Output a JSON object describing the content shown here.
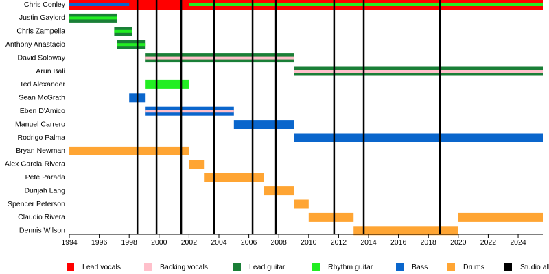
{
  "chart_data": {
    "type": "timeline",
    "categories": [
      "Chris Conley",
      "Justin Gaylord",
      "Chris Zampella",
      "Anthony Anastacio",
      "David Soloway",
      "Arun Bali",
      "Ted Alexander",
      "Sean McGrath",
      "Eben D'Amico",
      "Manuel Carrero",
      "Rodrigo Palma",
      "Bryan Newman",
      "Alex Garcia-Rivera",
      "Pete Parada",
      "Durijah Lang",
      "Spencer Peterson",
      "Claudio Rivera",
      "Dennis Wilson"
    ],
    "xlim": [
      1994,
      2025.65
    ],
    "xticks": [
      1994,
      1996,
      1998,
      2000,
      2002,
      2004,
      2006,
      2008,
      2010,
      2012,
      2014,
      2016,
      2018,
      2020,
      2022,
      2024
    ],
    "series": [
      {
        "name": "Lead vocals",
        "color": "#ff0000",
        "values": [
          [
            [
              1994,
              2025.65
            ]
          ],
          [],
          [],
          [],
          [],
          [],
          [],
          [],
          [],
          [],
          [],
          [],
          [],
          [],
          [],
          [],
          [],
          []
        ],
        "overlay": [
          [],
          [],
          [],
          [],
          [],
          [],
          [],
          [],
          [],
          [],
          [],
          [],
          [],
          [],
          [],
          [],
          [],
          []
        ]
      },
      {
        "name": "Backing vocals",
        "color": "#ffc0cb",
        "values": [
          [],
          [],
          [],
          [],
          [],
          [],
          [],
          [],
          [],
          [],
          [],
          [],
          [],
          [],
          [],
          [],
          [],
          []
        ],
        "overlay": [
          [],
          [],
          [],
          [],
          [
            [
              1999.1,
              2009
            ]
          ],
          [
            [
              2009,
              2025.65
            ]
          ],
          [],
          [],
          [
            [
              1999.1,
              2005
            ]
          ],
          [],
          [],
          [],
          [],
          [],
          [],
          [],
          [],
          []
        ]
      },
      {
        "name": "Lead guitar",
        "color": "#1a7f37",
        "values": [
          [],
          [
            [
              1994,
              1997.2
            ]
          ],
          [
            [
              1997,
              1998.2
            ]
          ],
          [
            [
              1997.2,
              1999.1
            ]
          ],
          [
            [
              1999.1,
              2009
            ]
          ],
          [
            [
              2009,
              2025.65
            ]
          ],
          [],
          [],
          [],
          [],
          [],
          [],
          [],
          [],
          [],
          [],
          [],
          []
        ],
        "overlay": [
          [],
          [],
          [],
          [],
          [],
          [],
          [],
          [],
          [],
          [],
          [],
          [],
          [],
          [],
          [],
          [],
          [],
          []
        ]
      },
      {
        "name": "Rhythm guitar",
        "color": "#22ee22",
        "values": [
          [],
          [],
          [],
          [],
          [],
          [],
          [
            [
              1999.1,
              2002
            ]
          ],
          [],
          [],
          [],
          [],
          [],
          [],
          [],
          [],
          [],
          [],
          []
        ],
        "overlay": [
          [
            [
              2002,
              2025.65
            ]
          ],
          [
            [
              1994,
              1997.2
            ]
          ],
          [
            [
              1997,
              1998.2
            ]
          ],
          [
            [
              1997.2,
              1999.1
            ]
          ],
          [],
          [],
          [],
          [],
          [],
          [],
          [],
          [],
          [],
          [],
          [],
          [],
          [],
          []
        ]
      },
      {
        "name": "Bass",
        "color": "#0a66cc",
        "values": [
          [],
          [],
          [],
          [],
          [],
          [],
          [],
          [
            [
              1998,
              1999.1
            ]
          ],
          [
            [
              1999.1,
              2005
            ]
          ],
          [
            [
              2005,
              2009
            ]
          ],
          [
            [
              2009,
              2025.65
            ]
          ],
          [],
          [],
          [],
          [],
          [],
          [],
          []
        ],
        "overlay": [
          [
            [
              1994,
              1998
            ]
          ],
          [],
          [],
          [],
          [],
          [],
          [],
          [],
          [],
          [],
          [],
          [],
          [],
          [],
          [],
          [],
          [],
          []
        ]
      },
      {
        "name": "Drums",
        "color": "#ffa533",
        "values": [
          [],
          [],
          [],
          [],
          [],
          [],
          [],
          [],
          [],
          [],
          [],
          [
            [
              1994,
              2002
            ]
          ],
          [
            [
              2002,
              2003
            ]
          ],
          [
            [
              2003,
              2007
            ]
          ],
          [
            [
              2007,
              2009
            ]
          ],
          [
            [
              2009,
              2010
            ]
          ],
          [
            [
              2010,
              2013
            ],
            [
              2020,
              2025.65
            ]
          ],
          [
            [
              2013,
              2020
            ]
          ]
        ],
        "overlay": [
          [],
          [],
          [],
          [],
          [],
          [],
          [],
          [],
          [],
          [],
          [],
          [],
          [],
          [],
          [],
          [],
          [],
          []
        ]
      },
      {
        "name": "Studio albums",
        "color": "#000000",
        "lines": [
          1998.55,
          1999.83,
          2001.48,
          2003.68,
          2006.25,
          2007.81,
          2011.7,
          2013.68,
          2018.77
        ]
      }
    ]
  }
}
